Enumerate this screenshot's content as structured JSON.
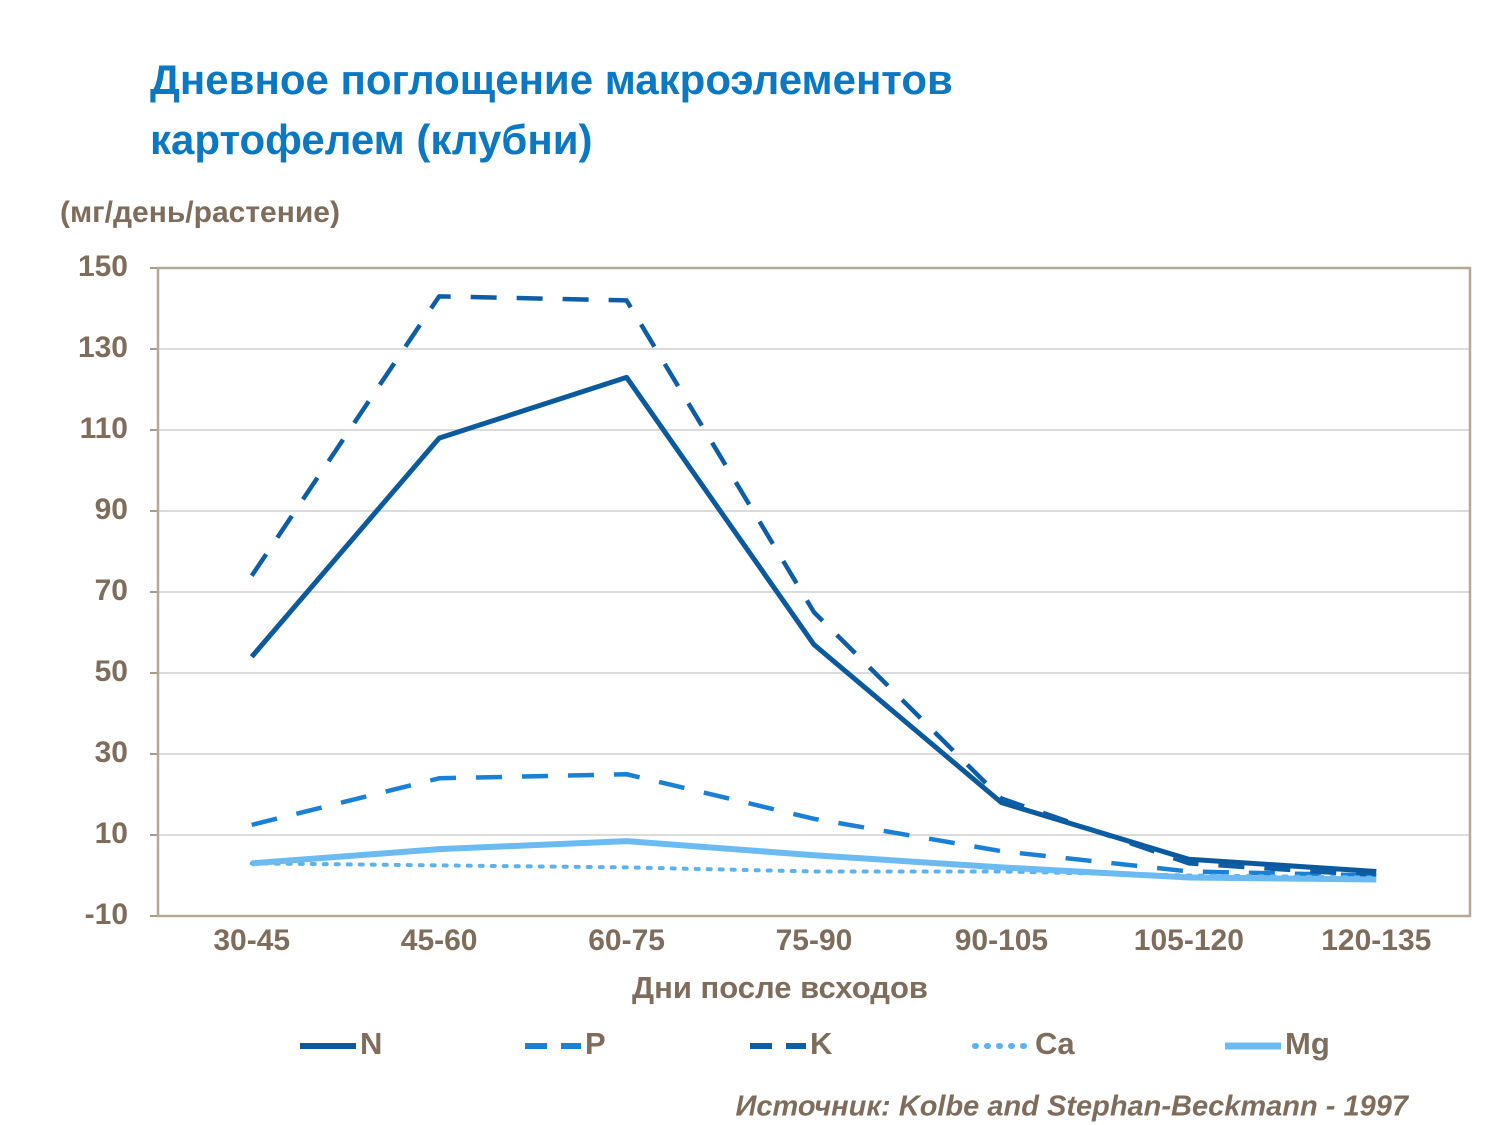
{
  "chart_data": {
    "type": "line",
    "title": "Дневное поглощение макроэлементов картофелем (клубни)",
    "y_label": "(мг/день/растение)",
    "x_label": "Дни после всходов",
    "source": "Источник: Kolbe and Stephan-Beckmann  - 1997",
    "categories": [
      "30-45",
      "45-60",
      "60-75",
      "75-90",
      "90-105",
      "105-120",
      "120-135"
    ],
    "series": [
      {
        "name": "N",
        "color": "#0b5a9e",
        "dash": "solid",
        "values": [
          54,
          108,
          123,
          57,
          18,
          4,
          1
        ]
      },
      {
        "name": "P",
        "color": "#1a80d6",
        "dash": "dashed",
        "values": [
          12.5,
          24,
          25,
          14,
          6,
          1,
          0
        ]
      },
      {
        "name": "K",
        "color": "#0d5ea6",
        "dash": "dashed",
        "values": [
          74,
          143,
          142,
          65,
          19,
          3,
          0
        ]
      },
      {
        "name": "Ca",
        "color": "#5cb2ea",
        "dash": "dotted",
        "values": [
          3,
          2.5,
          2,
          1,
          1,
          0,
          -0.5
        ]
      },
      {
        "name": "Mg",
        "color": "#6cbaf2",
        "dash": "solid",
        "values": [
          3,
          6.5,
          8.5,
          5,
          2,
          -0.5,
          -1
        ]
      }
    ],
    "ylim": [
      -10,
      150
    ],
    "yticks": [
      -10,
      10,
      30,
      50,
      70,
      90,
      110,
      130,
      150
    ],
    "grid": true
  }
}
